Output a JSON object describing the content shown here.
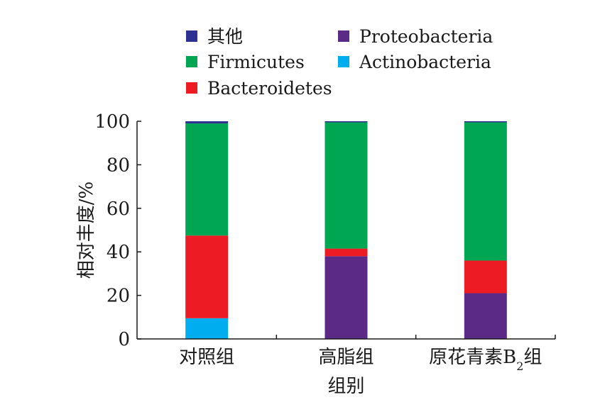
{
  "chart_data": {
    "type": "bar",
    "stacked": true,
    "categories": [
      "对照组",
      "高脂组",
      "原花青素B₂组"
    ],
    "category_label_parts": [
      {
        "main": "对照组"
      },
      {
        "main": "高脂组"
      },
      {
        "main": "原花青素B",
        "sub": "2",
        "tail": "组"
      }
    ],
    "series": [
      {
        "name": "Actinobacteria",
        "color": "#00aeef",
        "values": [
          9.5,
          0,
          0
        ]
      },
      {
        "name": "Proteobacteria",
        "color": "#5b2a86",
        "values": [
          0,
          38,
          21
        ]
      },
      {
        "name": "Bacteroidetes",
        "color": "#ed1c24",
        "values": [
          38,
          3.5,
          15
        ]
      },
      {
        "name": "Firmicutes",
        "color": "#00a651",
        "values": [
          51.5,
          58,
          63.5
        ]
      },
      {
        "name": "其他",
        "color": "#2e3192",
        "values": [
          1,
          0.5,
          0.5
        ]
      }
    ],
    "legend_order": [
      "其他",
      "Proteobacteria",
      "Firmicutes",
      "Actinobacteria",
      "Bacteroidetes"
    ],
    "xlabel": "组别",
    "ylabel": "相对丰度/%",
    "ylim": [
      0,
      100
    ],
    "yticks": [
      0,
      20,
      40,
      60,
      80,
      100
    ],
    "grid": false,
    "legend_position": "top"
  }
}
